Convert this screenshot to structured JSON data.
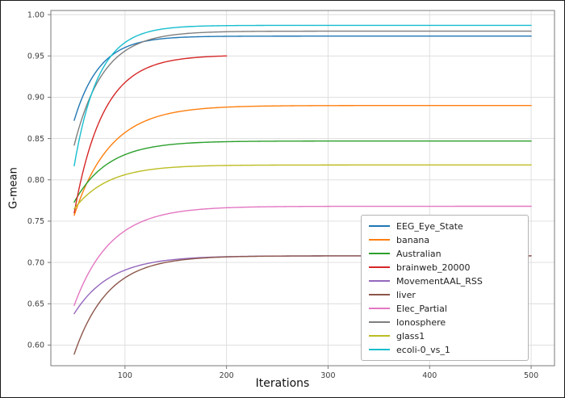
{
  "figure": {
    "background": "#ffffff",
    "grid_color": "#dcdcdc",
    "spine_color": "#7a7a7a",
    "tick_label_color": "#3c3c3c"
  },
  "chart_data": {
    "type": "line",
    "title": "",
    "xlabel": "Iterations",
    "ylabel": "G-mean",
    "xlim": [
      27,
      523
    ],
    "ylim": [
      0.575,
      1.005
    ],
    "xticks": [
      100,
      200,
      300,
      400,
      500
    ],
    "yticks": [
      0.6,
      0.65,
      0.7,
      0.75,
      0.8,
      0.85,
      0.9,
      0.95,
      1.0
    ],
    "grid": true,
    "legend_position": "lower right",
    "series": [
      {
        "name": "EEG_Eye_State",
        "color": "#1f77b4",
        "x_start": 50,
        "x_end": 500,
        "y_start": 0.872,
        "y_plateau": 0.974,
        "rate": 0.04,
        "x": [
          50,
          75,
          100,
          150,
          200,
          300,
          400,
          500
        ],
        "y": [
          0.872,
          0.936,
          0.96,
          0.972,
          0.974,
          0.974,
          0.974,
          0.974
        ]
      },
      {
        "name": "banana",
        "color": "#ff7f0e",
        "x_start": 50,
        "x_end": 500,
        "y_start": 0.757,
        "y_plateau": 0.89,
        "rate": 0.028,
        "x": [
          50,
          75,
          100,
          150,
          200,
          300,
          400,
          500
        ],
        "y": [
          0.757,
          0.824,
          0.857,
          0.882,
          0.888,
          0.89,
          0.89,
          0.89
        ]
      },
      {
        "name": "Australian",
        "color": "#2ca02c",
        "x_start": 50,
        "x_end": 500,
        "y_start": 0.773,
        "y_plateau": 0.847,
        "rate": 0.03,
        "x": [
          50,
          75,
          100,
          150,
          200,
          300,
          400,
          500
        ],
        "y": [
          0.773,
          0.812,
          0.83,
          0.843,
          0.846,
          0.847,
          0.847,
          0.847
        ]
      },
      {
        "name": "brainweb_20000",
        "color": "#d62728",
        "x_start": 50,
        "x_end": 200,
        "y_start": 0.76,
        "y_plateau": 0.951,
        "rate": 0.035,
        "x": [
          50,
          75,
          100,
          150,
          200
        ],
        "y": [
          0.76,
          0.871,
          0.918,
          0.945,
          0.95
        ]
      },
      {
        "name": "MovementAAL_RSS",
        "color": "#9467bd",
        "x_start": 50,
        "x_end": 500,
        "y_start": 0.638,
        "y_plateau": 0.708,
        "rate": 0.028,
        "x": [
          50,
          75,
          100,
          150,
          200,
          300,
          400,
          500
        ],
        "y": [
          0.638,
          0.673,
          0.691,
          0.704,
          0.707,
          0.708,
          0.708,
          0.708
        ]
      },
      {
        "name": "liver",
        "color": "#8c564b",
        "x_start": 50,
        "x_end": 500,
        "y_start": 0.589,
        "y_plateau": 0.708,
        "rate": 0.03,
        "x": [
          50,
          75,
          100,
          150,
          200,
          300,
          400,
          500
        ],
        "y": [
          0.589,
          0.652,
          0.681,
          0.702,
          0.705,
          0.708,
          0.708,
          0.708
        ]
      },
      {
        "name": "Elec_Partial",
        "color": "#e377c2",
        "x_start": 50,
        "x_end": 500,
        "y_start": 0.648,
        "y_plateau": 0.768,
        "rate": 0.028,
        "x": [
          50,
          75,
          100,
          150,
          200,
          300,
          400,
          500
        ],
        "y": [
          0.648,
          0.708,
          0.738,
          0.761,
          0.766,
          0.768,
          0.768,
          0.768
        ]
      },
      {
        "name": "Ionosphere",
        "color": "#7f7f7f",
        "x_start": 50,
        "x_end": 500,
        "y_start": 0.842,
        "y_plateau": 0.98,
        "rate": 0.035,
        "x": [
          50,
          75,
          100,
          150,
          200,
          300,
          400,
          500
        ],
        "y": [
          0.842,
          0.923,
          0.956,
          0.976,
          0.979,
          0.98,
          0.98,
          0.98
        ]
      },
      {
        "name": "glass1",
        "color": "#bcbd22",
        "x_start": 50,
        "x_end": 500,
        "y_start": 0.765,
        "y_plateau": 0.818,
        "rate": 0.03,
        "x": [
          50,
          75,
          100,
          150,
          200,
          300,
          400,
          500
        ],
        "y": [
          0.765,
          0.793,
          0.806,
          0.815,
          0.817,
          0.818,
          0.818,
          0.818
        ]
      },
      {
        "name": "ecoli-0_vs_1",
        "color": "#17becf",
        "x_start": 50,
        "x_end": 500,
        "y_start": 0.817,
        "y_plateau": 0.987,
        "rate": 0.042,
        "x": [
          50,
          75,
          100,
          150,
          200,
          300,
          400,
          500
        ],
        "y": [
          0.817,
          0.927,
          0.966,
          0.984,
          0.986,
          0.987,
          0.987,
          0.987
        ]
      }
    ]
  }
}
